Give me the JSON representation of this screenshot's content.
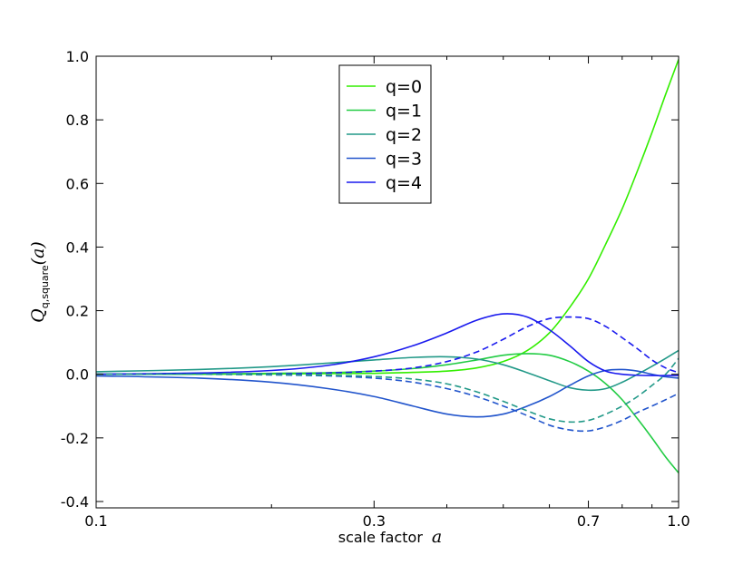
{
  "chart_data": {
    "type": "line",
    "xlabel": "scale factor",
    "xlabel_var": "a",
    "ylabel_symbol": "Q",
    "ylabel_sub": "q,square",
    "ylabel_arg": "(a)",
    "xscale": "log",
    "xlim": [
      0.1,
      1.0
    ],
    "ylim": [
      -0.42,
      1.0
    ],
    "xticks": [
      0.1,
      0.3,
      0.7,
      1.0
    ],
    "xtick_labels": [
      "0.1",
      "0.3",
      "0.7",
      "1.0"
    ],
    "yticks": [
      -0.4,
      -0.2,
      0.0,
      0.2,
      0.4,
      0.6,
      0.8,
      1.0
    ],
    "ytick_labels": [
      "-0.4",
      "-0.2",
      "0.0",
      "0.2",
      "0.4",
      "0.6",
      "0.8",
      "1.0"
    ],
    "grid": false,
    "legend_position": "top-center",
    "x": [
      0.1,
      0.15,
      0.2,
      0.25,
      0.3,
      0.35,
      0.4,
      0.45,
      0.5,
      0.55,
      0.6,
      0.65,
      0.7,
      0.75,
      0.8,
      0.85,
      0.9,
      0.95,
      1.0
    ],
    "series": [
      {
        "name": "q=0",
        "color": "#33ee00",
        "dash": false,
        "values": [
          0.0,
          0.0,
          0.001,
          0.002,
          0.003,
          0.006,
          0.01,
          0.02,
          0.04,
          0.075,
          0.13,
          0.21,
          0.3,
          0.41,
          0.52,
          0.64,
          0.76,
          0.88,
          0.99
        ]
      },
      {
        "name": "q=1",
        "color": "#22cc44",
        "dash": false,
        "values": [
          0.0,
          0.001,
          0.003,
          0.005,
          0.01,
          0.018,
          0.03,
          0.045,
          0.06,
          0.065,
          0.06,
          0.04,
          0.01,
          -0.03,
          -0.08,
          -0.14,
          -0.2,
          -0.26,
          -0.31
        ]
      },
      {
        "name": "q=2",
        "color": "#229988",
        "dash": false,
        "values": [
          0.008,
          0.015,
          0.024,
          0.035,
          0.045,
          0.053,
          0.055,
          0.048,
          0.03,
          0.005,
          -0.02,
          -0.042,
          -0.05,
          -0.045,
          -0.025,
          0.0,
          0.025,
          0.05,
          0.075
        ]
      },
      {
        "name": "q=3",
        "color": "#2255cc",
        "dash": false,
        "values": [
          -0.005,
          -0.012,
          -0.025,
          -0.045,
          -0.07,
          -0.1,
          -0.125,
          -0.134,
          -0.125,
          -0.1,
          -0.07,
          -0.035,
          -0.005,
          0.012,
          0.015,
          0.01,
          0.0,
          -0.008,
          -0.012
        ]
      },
      {
        "name": "q=4",
        "color": "#1a1aee",
        "dash": false,
        "values": [
          0.0,
          0.004,
          0.012,
          0.028,
          0.055,
          0.09,
          0.13,
          0.17,
          0.19,
          0.18,
          0.14,
          0.09,
          0.04,
          0.01,
          0.0,
          -0.003,
          -0.004,
          -0.004,
          -0.004
        ]
      },
      {
        "color": "#1a1aee",
        "dash": true,
        "values": [
          0.0,
          0.0,
          0.001,
          0.004,
          0.01,
          0.02,
          0.04,
          0.07,
          0.11,
          0.15,
          0.175,
          0.18,
          0.175,
          0.15,
          0.115,
          0.08,
          0.045,
          0.02,
          0.005
        ]
      },
      {
        "color": "#2255cc",
        "dash": true,
        "values": [
          0.0,
          0.0,
          -0.002,
          -0.005,
          -0.012,
          -0.025,
          -0.045,
          -0.07,
          -0.1,
          -0.13,
          -0.16,
          -0.175,
          -0.178,
          -0.165,
          -0.145,
          -0.12,
          -0.1,
          -0.08,
          -0.06
        ]
      },
      {
        "color": "#229988",
        "dash": true,
        "values": [
          0.0,
          0.0,
          -0.001,
          -0.003,
          -0.007,
          -0.015,
          -0.03,
          -0.055,
          -0.085,
          -0.115,
          -0.14,
          -0.15,
          -0.145,
          -0.125,
          -0.1,
          -0.07,
          -0.035,
          0.0,
          0.05
        ]
      }
    ]
  }
}
